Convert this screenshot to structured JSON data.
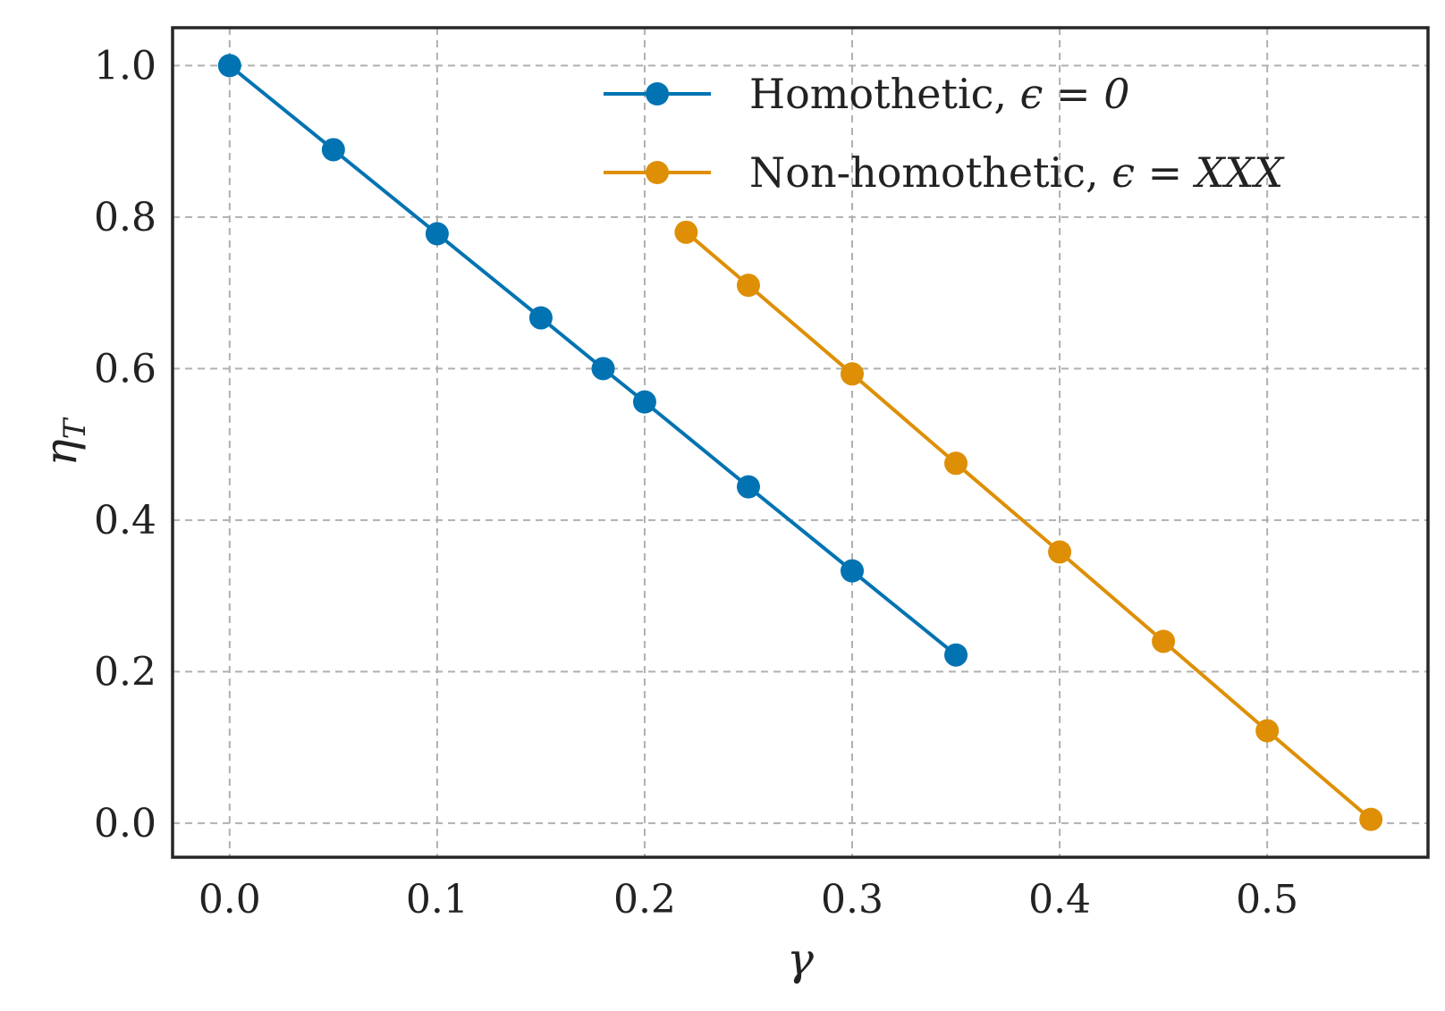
{
  "chart_data": {
    "type": "line",
    "title": "",
    "xlabel": "γ",
    "ylabel_main": "η",
    "ylabel_sub": "T",
    "xlim": [
      -0.0275,
      0.5775
    ],
    "ylim": [
      -0.045,
      1.05
    ],
    "xticks": [
      0.0,
      0.1,
      0.2,
      0.3,
      0.4,
      0.5
    ],
    "xtick_labels": [
      "0.0",
      "0.1",
      "0.2",
      "0.3",
      "0.4",
      "0.5"
    ],
    "yticks": [
      0.0,
      0.2,
      0.4,
      0.6,
      0.8,
      1.0
    ],
    "ytick_labels": [
      "0.0",
      "0.2",
      "0.4",
      "0.6",
      "0.8",
      "1.0"
    ],
    "grid": true,
    "legend_position": "top-right",
    "series": [
      {
        "name": "Homothetic",
        "legend_prefix": "Homothetic, ",
        "legend_math": "ϵ = 0",
        "color": "#0173b2",
        "x": [
          0.0,
          0.05,
          0.1,
          0.15,
          0.18,
          0.2,
          0.25,
          0.3,
          0.35
        ],
        "y": [
          1.0,
          0.889,
          0.778,
          0.667,
          0.6,
          0.556,
          0.444,
          0.333,
          0.222
        ]
      },
      {
        "name": "Non-homothetic",
        "legend_prefix": "Non-homothetic, ",
        "legend_math": "ϵ = XXX",
        "color": "#de8f05",
        "x": [
          0.22,
          0.25,
          0.3,
          0.35,
          0.4,
          0.45,
          0.5,
          0.55
        ],
        "y": [
          0.78,
          0.71,
          0.593,
          0.475,
          0.358,
          0.24,
          0.122,
          0.005
        ]
      }
    ]
  }
}
